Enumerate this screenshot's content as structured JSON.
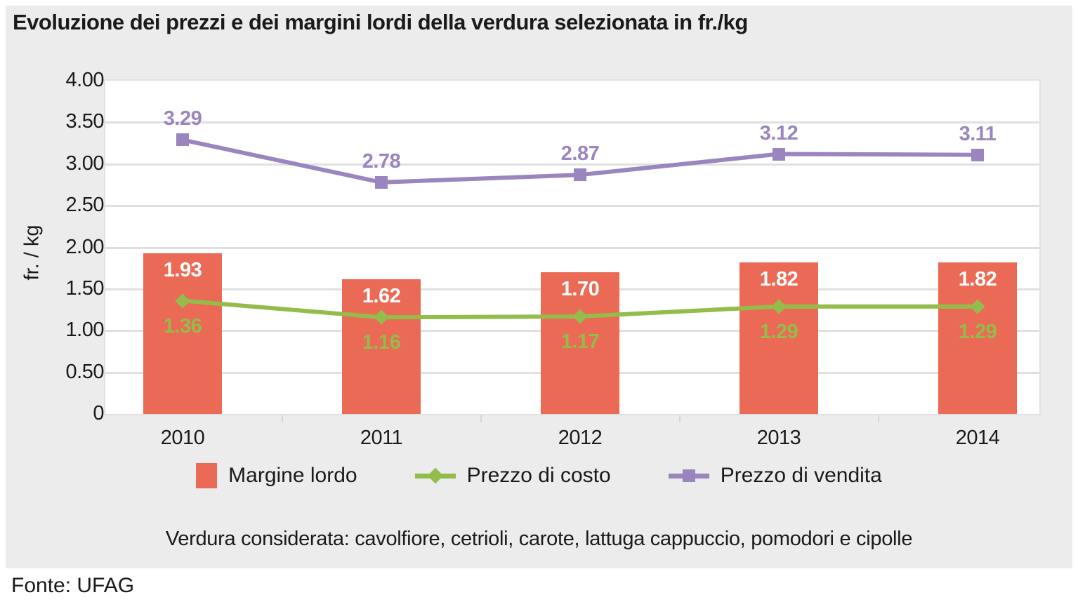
{
  "title": "Evoluzione dei prezzi e dei margini lordi della verdura selezionata in fr./kg",
  "note": "Verdura considerata: cavolfiore, cetrioli, carote, lattuga cappuccio, pomodori e cipolle",
  "source": "Fonte: UFAG",
  "colors": {
    "background": "#ECECEC",
    "plot_background": "#FFFFFF",
    "gridline": "#E0E0E0",
    "text": "#1A1A1A",
    "bar": "#EB6A55",
    "cost_line": "#94BC4B",
    "sell_line": "#9A85BE",
    "bar_label": "#FFFFFF"
  },
  "chart_data": {
    "type": "bar",
    "subtype": "bar + line combo chart",
    "categories": [
      "2010",
      "2011",
      "2012",
      "2013",
      "2014"
    ],
    "series": [
      {
        "name": "Margine lordo",
        "type": "bar",
        "color": "#EB6A55",
        "label_color": "#FFFFFF",
        "values": [
          1.93,
          1.62,
          1.7,
          1.82,
          1.82
        ],
        "value_labels": [
          "1.93",
          "1.62",
          "1.70",
          "1.82",
          "1.82"
        ]
      },
      {
        "name": "Prezzo di costo",
        "type": "line",
        "marker": "diamond",
        "color": "#94BC4B",
        "values": [
          1.36,
          1.16,
          1.17,
          1.29,
          1.29
        ],
        "value_labels": [
          "1.36",
          "1.16",
          "1.17",
          "1.29",
          "1.29"
        ]
      },
      {
        "name": "Prezzo di vendita",
        "type": "line",
        "marker": "square",
        "color": "#9A85BE",
        "values": [
          3.29,
          2.78,
          2.87,
          3.12,
          3.11
        ],
        "value_labels": [
          "3.29",
          "2.78",
          "2.87",
          "3.12",
          "3.11"
        ]
      }
    ],
    "xlabel": "",
    "ylabel": "fr. / kg",
    "yticks": [
      "4.00",
      "3.50",
      "3.00",
      "2.50",
      "2.00",
      "1.50",
      "1.00",
      "0.50",
      "0"
    ],
    "ylim": [
      0,
      4
    ],
    "grid": "horizontal",
    "legend_position": "bottom"
  }
}
